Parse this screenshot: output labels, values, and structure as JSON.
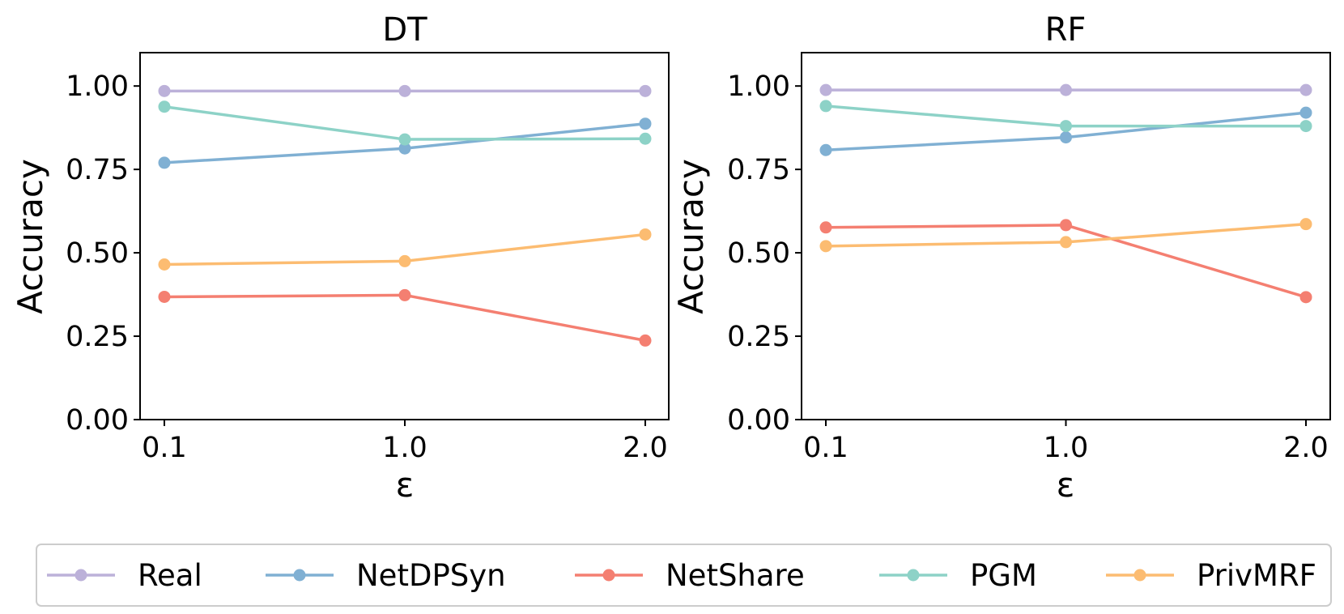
{
  "chart_data": [
    {
      "type": "line",
      "title": "DT",
      "xlabel": "ε",
      "ylabel": "Accuracy",
      "categories": [
        "0.1",
        "1.0",
        "2.0"
      ],
      "ylim": [
        0,
        1.1
      ],
      "yticks": [
        "0.00",
        "0.25",
        "0.50",
        "0.75",
        "1.00"
      ],
      "series": [
        {
          "name": "Real",
          "values": [
            0.985,
            0.985,
            0.985
          ]
        },
        {
          "name": "NetDPSyn",
          "values": [
            0.77,
            0.813,
            0.887
          ]
        },
        {
          "name": "NetShare",
          "values": [
            0.368,
            0.373,
            0.237
          ]
        },
        {
          "name": "PGM",
          "values": [
            0.938,
            0.84,
            0.842
          ]
        },
        {
          "name": "PrivMRF",
          "values": [
            0.465,
            0.475,
            0.555
          ]
        }
      ]
    },
    {
      "type": "line",
      "title": "RF",
      "xlabel": "ε",
      "ylabel": "Accuracy",
      "categories": [
        "0.1",
        "1.0",
        "2.0"
      ],
      "ylim": [
        0,
        1.1
      ],
      "yticks": [
        "0.00",
        "0.25",
        "0.50",
        "0.75",
        "1.00"
      ],
      "series": [
        {
          "name": "Real",
          "values": [
            0.988,
            0.988,
            0.988
          ]
        },
        {
          "name": "NetDPSyn",
          "values": [
            0.808,
            0.846,
            0.92
          ]
        },
        {
          "name": "NetShare",
          "values": [
            0.576,
            0.583,
            0.367
          ]
        },
        {
          "name": "PGM",
          "values": [
            0.94,
            0.88,
            0.88
          ]
        },
        {
          "name": "PrivMRF",
          "values": [
            0.52,
            0.532,
            0.586
          ]
        }
      ]
    }
  ],
  "legend": {
    "placement": "bottom",
    "items": [
      {
        "name": "Real",
        "color": "#bcb1d9"
      },
      {
        "name": "NetDPSyn",
        "color": "#80b0d3"
      },
      {
        "name": "NetShare",
        "color": "#f47f71"
      },
      {
        "name": "PGM",
        "color": "#8dd2c7"
      },
      {
        "name": "PrivMRF",
        "color": "#fcbc71"
      }
    ]
  }
}
